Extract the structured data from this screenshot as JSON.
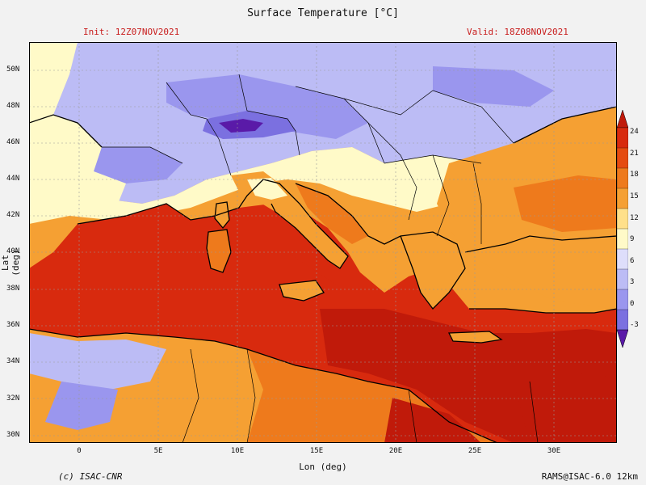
{
  "header": {
    "title": "Surface Temperature [°C]",
    "init": "Init: 12Z07NOV2021",
    "valid": "Valid: 18Z08NOV2021"
  },
  "axes": {
    "xlabel": "Lon (deg)",
    "ylabel": "Lat (deg)",
    "x_ticks": [
      "0",
      "5E",
      "10E",
      "15E",
      "20E",
      "25E",
      "30E"
    ],
    "y_ticks": [
      "50N",
      "48N",
      "46N",
      "44N",
      "42N",
      "40N",
      "38N",
      "36N",
      "34N",
      "32N",
      "30N"
    ]
  },
  "colorbar": {
    "ticks": [
      "24",
      "21",
      "18",
      "15",
      "12",
      "9",
      "6",
      "3",
      "0",
      "-3"
    ],
    "colors": [
      "#5a1aa8",
      "#7b70e0",
      "#9a96ee",
      "#bcbcf5",
      "#dedefb",
      "#fffac8",
      "#ffe08a",
      "#f5a033",
      "#ee7a1c",
      "#e54b10",
      "#d82a0e",
      "#c01a0a"
    ]
  },
  "footer": {
    "copyright": "(c) ISAC-CNR",
    "model": "RAMS@ISAC-6.0 12km"
  },
  "map_colors": {
    "sea_warm": "#d82a0e",
    "sea_hot": "#c01a0a",
    "land_cold": "#bcbcf5",
    "land_very_cold": "#7b70e0",
    "land_mild": "#fffac8",
    "land_warm": "#f5a033",
    "coast": "#000000",
    "grid": "#999999"
  }
}
